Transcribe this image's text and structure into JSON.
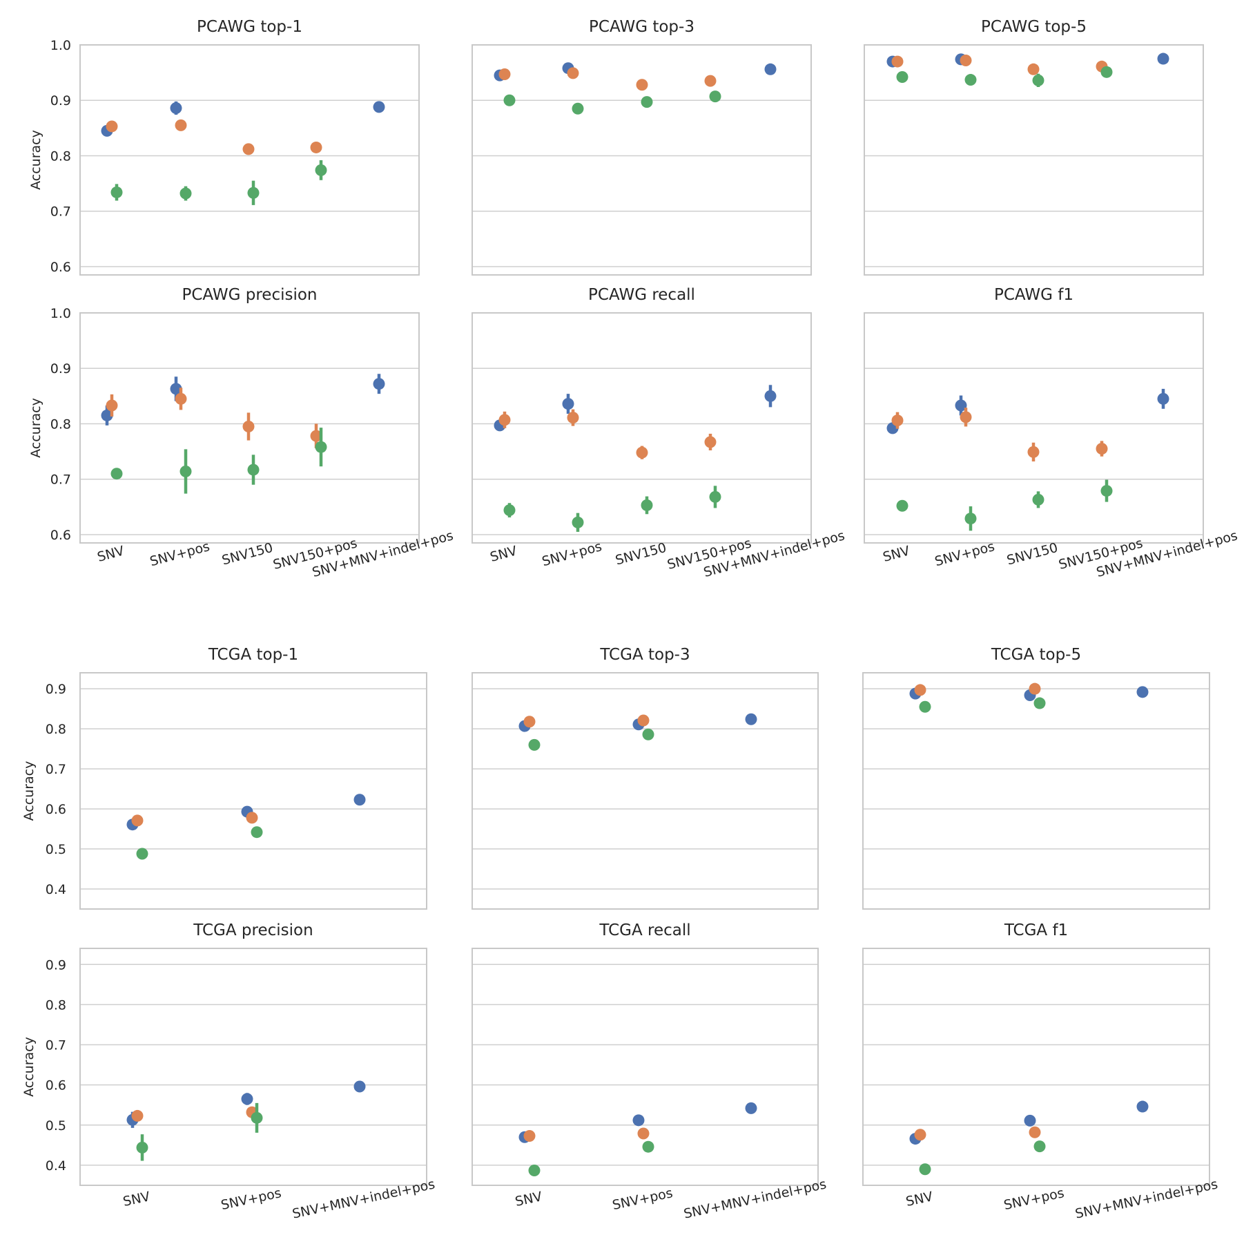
{
  "colors": {
    "blue": "#4c72b0",
    "orange": "#dd8452",
    "green": "#55a868"
  },
  "chart_data": [
    {
      "type": "scatter",
      "group": "PCAWG",
      "ylabel": "Accuracy",
      "ylim": [
        0.585,
        1.0
      ],
      "yticks": [
        "1.0",
        "0.9",
        "0.8",
        "0.7",
        "0.6"
      ],
      "yticks_values": [
        1.0,
        0.9,
        0.8,
        0.7,
        0.6
      ],
      "categories": [
        "SNV",
        "SNV+pos",
        "SNV150",
        "SNV150+pos",
        "SNV+MNV+indel+pos"
      ],
      "panels": [
        {
          "title": "PCAWG top-1",
          "series": [
            {
              "name": "blue",
              "values": [
                0.845,
                0.886,
                null,
                null,
                0.888
              ],
              "err": [
                0.008,
                0.012,
                0,
                0,
                0.01
              ]
            },
            {
              "name": "orange",
              "values": [
                0.853,
                0.855,
                0.812,
                0.815,
                null
              ],
              "err": [
                0.006,
                0.006,
                0.01,
                0.007,
                0
              ]
            },
            {
              "name": "green",
              "values": [
                0.734,
                0.732,
                0.733,
                0.774,
                null
              ],
              "err": [
                0.015,
                0.013,
                0.022,
                0.018,
                0
              ]
            }
          ]
        },
        {
          "title": "PCAWG top-3",
          "series": [
            {
              "name": "blue",
              "values": [
                0.945,
                0.958,
                null,
                null,
                0.956
              ],
              "err": [
                0.005,
                0.005,
                0,
                0,
                0.004
              ]
            },
            {
              "name": "orange",
              "values": [
                0.947,
                0.949,
                0.928,
                0.935,
                null
              ],
              "err": [
                0.004,
                0.004,
                0.005,
                0.004,
                0
              ]
            },
            {
              "name": "green",
              "values": [
                0.9,
                0.885,
                0.897,
                0.907,
                null
              ],
              "err": [
                0.005,
                0.005,
                0.006,
                0.006,
                0
              ]
            }
          ]
        },
        {
          "title": "PCAWG top-5",
          "series": [
            {
              "name": "blue",
              "values": [
                0.97,
                0.974,
                null,
                null,
                0.975
              ],
              "err": [
                0.003,
                0.003,
                0,
                0,
                0.003
              ]
            },
            {
              "name": "orange",
              "values": [
                0.97,
                0.972,
                0.956,
                0.961,
                null
              ],
              "err": [
                0.003,
                0.003,
                0.004,
                0.003,
                0
              ]
            },
            {
              "name": "green",
              "values": [
                0.942,
                0.937,
                0.936,
                0.951,
                null
              ],
              "err": [
                0.004,
                0.005,
                0.012,
                0.004,
                0
              ]
            }
          ]
        },
        {
          "title": "PCAWG precision",
          "series": [
            {
              "name": "blue",
              "values": [
                0.815,
                0.863,
                null,
                null,
                0.872
              ],
              "err": [
                0.018,
                0.022,
                0,
                0,
                0.018
              ]
            },
            {
              "name": "orange",
              "values": [
                0.833,
                0.845,
                0.795,
                0.778,
                null
              ],
              "err": [
                0.02,
                0.02,
                0.025,
                0.022,
                0
              ]
            },
            {
              "name": "green",
              "values": [
                0.71,
                0.714,
                0.717,
                0.758,
                null
              ],
              "err": [
                0.006,
                0.04,
                0.027,
                0.035,
                0
              ]
            }
          ]
        },
        {
          "title": "PCAWG recall",
          "series": [
            {
              "name": "blue",
              "values": [
                0.797,
                0.836,
                null,
                null,
                0.85
              ],
              "err": [
                0.01,
                0.018,
                0,
                0,
                0.02
              ]
            },
            {
              "name": "orange",
              "values": [
                0.807,
                0.811,
                0.748,
                0.767,
                null
              ],
              "err": [
                0.015,
                0.015,
                0.012,
                0.015,
                0
              ]
            },
            {
              "name": "green",
              "values": [
                0.644,
                0.622,
                0.653,
                0.668,
                null
              ],
              "err": [
                0.013,
                0.017,
                0.016,
                0.02,
                0
              ]
            }
          ]
        },
        {
          "title": "PCAWG f1",
          "series": [
            {
              "name": "blue",
              "values": [
                0.792,
                0.833,
                null,
                null,
                0.845
              ],
              "err": [
                0.01,
                0.018,
                0,
                0,
                0.018
              ]
            },
            {
              "name": "orange",
              "values": [
                0.806,
                0.812,
                0.749,
                0.755,
                null
              ],
              "err": [
                0.015,
                0.017,
                0.017,
                0.014,
                0
              ]
            },
            {
              "name": "green",
              "values": [
                0.652,
                0.629,
                0.663,
                0.679,
                null
              ],
              "err": [
                0.008,
                0.022,
                0.015,
                0.02,
                0
              ]
            }
          ]
        }
      ]
    },
    {
      "type": "scatter",
      "group": "TCGA",
      "ylabel": "Accuracy",
      "ylim": [
        0.35,
        0.94
      ],
      "yticks": [
        "0.9",
        "0.8",
        "0.7",
        "0.6",
        "0.5",
        "0.4"
      ],
      "yticks_values": [
        0.9,
        0.8,
        0.7,
        0.6,
        0.5,
        0.4
      ],
      "categories": [
        "SNV",
        "SNV+pos",
        "SNV+MNV+indel+pos"
      ],
      "panels": [
        {
          "title": "TCGA top-1",
          "series": [
            {
              "name": "blue",
              "values": [
                0.561,
                0.593,
                0.623
              ],
              "err": [
                0.006,
                0.006,
                0.006
              ]
            },
            {
              "name": "orange",
              "values": [
                0.571,
                0.578,
                null
              ],
              "err": [
                0.006,
                0.006,
                0
              ]
            },
            {
              "name": "green",
              "values": [
                0.488,
                0.542,
                null
              ],
              "err": [
                0.005,
                0.012,
                0
              ]
            }
          ]
        },
        {
          "title": "TCGA top-3",
          "series": [
            {
              "name": "blue",
              "values": [
                0.807,
                0.811,
                0.824
              ],
              "err": [
                0.005,
                0.005,
                0.004
              ]
            },
            {
              "name": "orange",
              "values": [
                0.818,
                0.821,
                null
              ],
              "err": [
                0.004,
                0.004,
                0
              ]
            },
            {
              "name": "green",
              "values": [
                0.76,
                0.786,
                null
              ],
              "err": [
                0.005,
                0.01,
                0
              ]
            }
          ]
        },
        {
          "title": "TCGA top-5",
          "series": [
            {
              "name": "blue",
              "values": [
                0.888,
                0.884,
                0.892
              ],
              "err": [
                0.004,
                0.004,
                0.004
              ]
            },
            {
              "name": "orange",
              "values": [
                0.897,
                0.9,
                null
              ],
              "err": [
                0.004,
                0.004,
                0
              ]
            },
            {
              "name": "green",
              "values": [
                0.855,
                0.864,
                null
              ],
              "err": [
                0.004,
                0.008,
                0
              ]
            }
          ]
        },
        {
          "title": "TCGA precision",
          "series": [
            {
              "name": "blue",
              "values": [
                0.513,
                0.565,
                0.596
              ],
              "err": [
                0.02,
                0.015,
                0.013
              ]
            },
            {
              "name": "orange",
              "values": [
                0.523,
                0.532,
                null
              ],
              "err": [
                0.012,
                0.012,
                0
              ]
            },
            {
              "name": "green",
              "values": [
                0.444,
                0.518,
                null
              ],
              "err": [
                0.033,
                0.037,
                0
              ]
            }
          ]
        },
        {
          "title": "TCGA recall",
          "series": [
            {
              "name": "blue",
              "values": [
                0.47,
                0.512,
                0.542
              ],
              "err": [
                0.008,
                0.01,
                0.01
              ]
            },
            {
              "name": "orange",
              "values": [
                0.473,
                0.479,
                null
              ],
              "err": [
                0.006,
                0.006,
                0
              ]
            },
            {
              "name": "green",
              "values": [
                0.387,
                0.446,
                null
              ],
              "err": [
                0.004,
                0.01,
                0
              ]
            }
          ]
        },
        {
          "title": "TCGA f1",
          "series": [
            {
              "name": "blue",
              "values": [
                0.466,
                0.511,
                0.546
              ],
              "err": [
                0.008,
                0.01,
                0.01
              ]
            },
            {
              "name": "orange",
              "values": [
                0.476,
                0.482,
                null
              ],
              "err": [
                0.006,
                0.006,
                0
              ]
            },
            {
              "name": "green",
              "values": [
                0.39,
                0.447,
                null
              ],
              "err": [
                0.004,
                0.01,
                0
              ]
            }
          ]
        }
      ]
    }
  ]
}
